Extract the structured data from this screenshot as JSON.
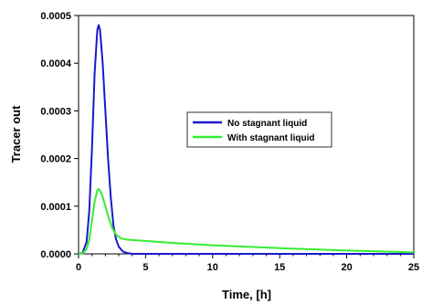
{
  "chart_data": {
    "type": "line",
    "title": "",
    "xlabel": "Time, [h]",
    "ylabel": "Tracer out",
    "xlim": [
      0,
      25
    ],
    "ylim": [
      0,
      0.0005
    ],
    "xticks": [
      0,
      5,
      10,
      15,
      20,
      25
    ],
    "xtick_labels": [
      "0",
      "5",
      "10",
      "15",
      "20",
      "25"
    ],
    "yticks": [
      0,
      0.0001,
      0.0002,
      0.0003,
      0.0004,
      0.0005
    ],
    "ytick_labels": [
      "0.0000",
      "0.0001",
      "0.0002",
      "0.0003",
      "0.0004",
      "0.0005"
    ],
    "grid": false,
    "legend_position": "center-right",
    "series": [
      {
        "name": "No stagnant liquid",
        "color": "#1a1acc",
        "x": [
          0,
          0.3,
          0.6,
          0.8,
          1.0,
          1.2,
          1.4,
          1.5,
          1.6,
          1.8,
          2.0,
          2.2,
          2.4,
          2.6,
          2.8,
          3.0,
          3.3,
          3.6,
          4.0,
          5.0,
          10.0,
          25.0
        ],
        "y": [
          0,
          2e-06,
          2.5e-05,
          9e-05,
          0.00022,
          0.00038,
          0.00047,
          0.00048,
          0.00047,
          0.0004,
          0.0003,
          0.0002,
          0.00012,
          6e-05,
          3e-05,
          1.5e-05,
          5e-06,
          2e-06,
          0,
          0,
          0,
          0
        ]
      },
      {
        "name": "With stagnant liquid",
        "color": "#33ee33",
        "x": [
          0,
          0.3,
          0.6,
          0.8,
          1.0,
          1.2,
          1.4,
          1.5,
          1.6,
          1.8,
          2.0,
          2.2,
          2.5,
          2.8,
          3.2,
          3.6,
          4.0,
          5.0,
          7.0,
          10.0,
          15.0,
          20.0,
          25.0
        ],
        "y": [
          0,
          1e-06,
          1e-05,
          3e-05,
          7e-05,
          0.00011,
          0.000133,
          0.000136,
          0.000133,
          0.00012,
          0.0001,
          8e-05,
          5.5e-05,
          4e-05,
          3.2e-05,
          3e-05,
          2.9e-05,
          2.7e-05,
          2.3e-05,
          1.8e-05,
          1.2e-05,
          7e-06,
          3e-06
        ]
      }
    ]
  }
}
